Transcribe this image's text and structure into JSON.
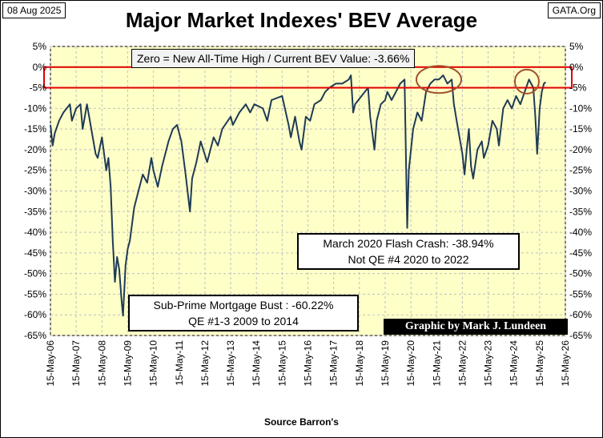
{
  "header": {
    "date": "08 Aug 2025",
    "brand": "GATA.Org",
    "title": "Major Market Indexes' BEV Average"
  },
  "annotations": {
    "zero_note": "Zero = New All-Time High / Current BEV Value:  -3.66%",
    "march_line1": "March 2020 Flash Crash:  -38.94%",
    "march_line2": "Not QE #4 2020 to 2022",
    "subprime_line1": "Sub-Prime Mortgage Bust : -60.22%",
    "subprime_line2": "QE #1-3 2009 to 2014",
    "credit": "Graphic by Mark J. Lundeen"
  },
  "footer": {
    "source": "Source Barron's"
  },
  "colors": {
    "plot_bg": "#ffffc8",
    "line": "#1f3b55",
    "highlight": "#e00000",
    "circle": "#a0522d",
    "grid": "#c0c0c0"
  },
  "chart_data": {
    "type": "line",
    "title": "Major Market Indexes' BEV Average",
    "xlabel": "",
    "ylabel": "",
    "x_ticks": [
      "15-May-06",
      "15-May-07",
      "15-May-08",
      "15-May-09",
      "15-May-10",
      "15-May-11",
      "15-May-12",
      "15-May-13",
      "15-May-14",
      "15-May-15",
      "15-May-16",
      "15-May-17",
      "15-May-18",
      "15-May-19",
      "15-May-20",
      "15-May-21",
      "15-May-22",
      "15-May-23",
      "15-May-24",
      "15-May-25",
      "15-May-26"
    ],
    "y_ticks": [
      "5%",
      "0%",
      "-5%",
      "-10%",
      "-15%",
      "-20%",
      "-25%",
      "-30%",
      "-35%",
      "-40%",
      "-45%",
      "-50%",
      "-55%",
      "-60%",
      "-65%"
    ],
    "ylim": [
      -65,
      5
    ],
    "xlim": [
      "2006-05-15",
      "2026-05-15"
    ],
    "grid": true,
    "highlight_band": [
      -5,
      0
    ],
    "series": [
      {
        "values": [
          [
            "2006-05-15",
            -14
          ],
          [
            "2006-06-15",
            -19
          ],
          [
            "2006-07-15",
            -16
          ],
          [
            "2006-09-15",
            -13
          ],
          [
            "2006-11-15",
            -11
          ],
          [
            "2007-02-15",
            -9
          ],
          [
            "2007-03-15",
            -13
          ],
          [
            "2007-05-15",
            -10
          ],
          [
            "2007-07-15",
            -9
          ],
          [
            "2007-08-15",
            -15
          ],
          [
            "2007-10-15",
            -9
          ],
          [
            "2007-12-15",
            -15
          ],
          [
            "2008-02-15",
            -21
          ],
          [
            "2008-03-15",
            -22
          ],
          [
            "2008-05-15",
            -17
          ],
          [
            "2008-07-15",
            -25
          ],
          [
            "2008-08-15",
            -22
          ],
          [
            "2008-09-15",
            -29
          ],
          [
            "2008-10-15",
            -42
          ],
          [
            "2008-11-15",
            -52
          ],
          [
            "2008-12-15",
            -46
          ],
          [
            "2009-01-15",
            -49
          ],
          [
            "2009-02-15",
            -56
          ],
          [
            "2009-03-09",
            -60.22
          ],
          [
            "2009-04-15",
            -48
          ],
          [
            "2009-05-15",
            -44
          ],
          [
            "2009-06-15",
            -42
          ],
          [
            "2009-08-15",
            -34
          ],
          [
            "2009-10-15",
            -30
          ],
          [
            "2009-12-15",
            -26
          ],
          [
            "2010-02-15",
            -28
          ],
          [
            "2010-04-15",
            -22
          ],
          [
            "2010-05-15",
            -25
          ],
          [
            "2010-07-15",
            -29
          ],
          [
            "2010-09-15",
            -24
          ],
          [
            "2010-12-15",
            -18
          ],
          [
            "2011-02-15",
            -15
          ],
          [
            "2011-04-15",
            -14
          ],
          [
            "2011-06-15",
            -18
          ],
          [
            "2011-08-15",
            -26
          ],
          [
            "2011-10-15",
            -35
          ],
          [
            "2011-11-15",
            -27
          ],
          [
            "2012-01-15",
            -23
          ],
          [
            "2012-03-15",
            -18
          ],
          [
            "2012-06-15",
            -23
          ],
          [
            "2012-09-15",
            -17
          ],
          [
            "2012-11-15",
            -19
          ],
          [
            "2013-01-15",
            -15
          ],
          [
            "2013-05-15",
            -12
          ],
          [
            "2013-06-15",
            -14
          ],
          [
            "2013-09-15",
            -11
          ],
          [
            "2013-12-15",
            -9
          ],
          [
            "2014-02-15",
            -11
          ],
          [
            "2014-04-15",
            -9
          ],
          [
            "2014-08-15",
            -10
          ],
          [
            "2014-10-15",
            -13
          ],
          [
            "2014-12-15",
            -8
          ],
          [
            "2015-05-15",
            -7
          ],
          [
            "2015-08-15",
            -14
          ],
          [
            "2015-09-15",
            -17
          ],
          [
            "2015-11-15",
            -12
          ],
          [
            "2016-01-15",
            -18
          ],
          [
            "2016-02-15",
            -20
          ],
          [
            "2016-04-15",
            -12
          ],
          [
            "2016-06-15",
            -13
          ],
          [
            "2016-08-15",
            -9
          ],
          [
            "2016-11-15",
            -8
          ],
          [
            "2017-01-15",
            -6
          ],
          [
            "2017-03-15",
            -5
          ],
          [
            "2017-06-15",
            -4
          ],
          [
            "2017-09-15",
            -4
          ],
          [
            "2017-12-15",
            -3
          ],
          [
            "2018-01-15",
            -2
          ],
          [
            "2018-02-15",
            -11
          ],
          [
            "2018-03-15",
            -9
          ],
          [
            "2018-06-15",
            -7
          ],
          [
            "2018-09-15",
            -5
          ],
          [
            "2018-10-15",
            -12
          ],
          [
            "2018-12-15",
            -20
          ],
          [
            "2019-01-15",
            -13
          ],
          [
            "2019-03-15",
            -9
          ],
          [
            "2019-05-15",
            -8
          ],
          [
            "2019-06-15",
            -6
          ],
          [
            "2019-08-15",
            -8
          ],
          [
            "2019-10-15",
            -6
          ],
          [
            "2019-12-15",
            -4
          ],
          [
            "2020-02-15",
            -3
          ],
          [
            "2020-03-23",
            -38.94
          ],
          [
            "2020-04-15",
            -25
          ],
          [
            "2020-06-15",
            -15
          ],
          [
            "2020-08-15",
            -11
          ],
          [
            "2020-10-15",
            -13
          ],
          [
            "2020-12-15",
            -6
          ],
          [
            "2021-02-15",
            -4
          ],
          [
            "2021-04-15",
            -3
          ],
          [
            "2021-06-15",
            -3
          ],
          [
            "2021-08-15",
            -2
          ],
          [
            "2021-10-15",
            -4
          ],
          [
            "2021-12-15",
            -3
          ],
          [
            "2022-01-15",
            -9
          ],
          [
            "2022-03-15",
            -15
          ],
          [
            "2022-05-15",
            -21
          ],
          [
            "2022-06-15",
            -26
          ],
          [
            "2022-07-15",
            -20
          ],
          [
            "2022-08-15",
            -15
          ],
          [
            "2022-09-15",
            -24
          ],
          [
            "2022-10-15",
            -27
          ],
          [
            "2022-12-15",
            -20
          ],
          [
            "2023-02-15",
            -18
          ],
          [
            "2023-03-15",
            -22
          ],
          [
            "2023-05-15",
            -19
          ],
          [
            "2023-07-15",
            -13
          ],
          [
            "2023-09-15",
            -15
          ],
          [
            "2023-10-15",
            -19
          ],
          [
            "2023-12-15",
            -10
          ],
          [
            "2024-02-15",
            -8
          ],
          [
            "2024-04-15",
            -10
          ],
          [
            "2024-06-15",
            -7
          ],
          [
            "2024-08-15",
            -9
          ],
          [
            "2024-10-15",
            -6
          ],
          [
            "2024-12-15",
            -3
          ],
          [
            "2025-02-15",
            -5
          ],
          [
            "2025-03-15",
            -12
          ],
          [
            "2025-04-10",
            -21
          ],
          [
            "2025-05-15",
            -10
          ],
          [
            "2025-06-15",
            -6
          ],
          [
            "2025-07-15",
            -4
          ],
          [
            "2025-08-08",
            -3.66
          ]
        ]
      }
    ]
  }
}
